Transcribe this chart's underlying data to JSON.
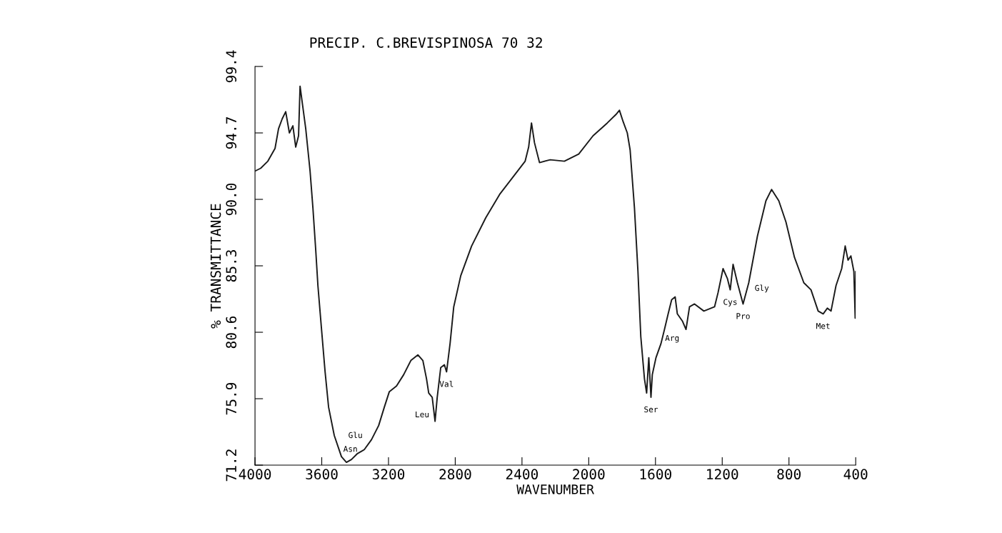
{
  "chart_data": {
    "type": "line",
    "title": "PRECIP. C.BREVISPINOSA 70 32",
    "xlabel": "WAVENUMBER",
    "ylabel": "% TRANSMITTANCE",
    "xlim": [
      4000,
      400
    ],
    "xticks": [
      4000,
      3600,
      3200,
      2800,
      2400,
      2000,
      1600,
      1200,
      800,
      400
    ],
    "ylim": [
      71.2,
      99.4
    ],
    "yticks": [
      71.2,
      75.9,
      80.6,
      85.3,
      {
        "value": 90,
        "label": "90.0"
      },
      94.7,
      99.4
    ],
    "grid": false,
    "legend": false,
    "marker": "none",
    "line_style": "solid",
    "x": [
      4000,
      3966,
      3923,
      3880,
      3859,
      3837,
      3816,
      3794,
      3773,
      3756,
      3739,
      3730,
      3713,
      3696,
      3683,
      3670,
      3653,
      3636,
      3623,
      3602,
      3580,
      3559,
      3525,
      3482,
      3452,
      3422,
      3388,
      3345,
      3302,
      3259,
      3225,
      3195,
      3152,
      3109,
      3066,
      3024,
      2994,
      2972,
      2959,
      2938,
      2921,
      2908,
      2887,
      2865,
      2852,
      2831,
      2809,
      2767,
      2702,
      2617,
      2531,
      2446,
      2381,
      2360,
      2343,
      2325,
      2295,
      2231,
      2146,
      2060,
      1974,
      1889,
      1837,
      1816,
      1794,
      1769,
      1752,
      1726,
      1705,
      1688,
      1666,
      1653,
      1640,
      1627,
      1619,
      1597,
      1567,
      1546,
      1524,
      1503,
      1482,
      1469,
      1439,
      1417,
      1396,
      1366,
      1310,
      1246,
      1225,
      1195,
      1169,
      1152,
      1135,
      1109,
      1075,
      1041,
      989,
      938,
      904,
      861,
      818,
      767,
      711,
      668,
      625,
      595,
      570,
      548,
      518,
      484,
      463,
      446,
      429,
      411,
      403,
      400
    ],
    "series": [
      {
        "color": "#1a1a1a",
        "values": [
          92.0,
          92.2,
          92.7,
          93.6,
          95.0,
          95.7,
          96.2,
          94.7,
          95.2,
          93.7,
          94.5,
          98.0,
          96.5,
          95.0,
          93.5,
          92.0,
          89.4,
          86.4,
          83.9,
          80.9,
          77.8,
          75.3,
          73.3,
          71.8,
          71.4,
          71.6,
          72.0,
          72.3,
          73.0,
          74.0,
          75.3,
          76.4,
          76.8,
          77.6,
          78.6,
          79.0,
          78.6,
          77.3,
          76.3,
          76.0,
          74.3,
          76.0,
          78.1,
          78.3,
          77.8,
          79.8,
          82.4,
          84.6,
          86.7,
          88.7,
          90.4,
          91.7,
          92.7,
          93.7,
          95.4,
          94.0,
          92.6,
          92.8,
          92.7,
          93.2,
          94.5,
          95.4,
          96.0,
          96.3,
          95.5,
          94.7,
          93.5,
          89.4,
          84.9,
          80.3,
          77.3,
          76.3,
          78.8,
          76.0,
          77.6,
          78.8,
          79.8,
          80.8,
          81.9,
          82.9,
          83.1,
          81.9,
          81.4,
          80.8,
          82.4,
          82.6,
          82.1,
          82.4,
          83.4,
          85.1,
          84.4,
          83.6,
          85.4,
          84.1,
          82.6,
          84.1,
          87.4,
          89.9,
          90.7,
          89.9,
          88.4,
          85.9,
          84.1,
          83.6,
          82.1,
          81.9,
          82.3,
          82.1,
          83.9,
          85.1,
          86.7,
          85.7,
          86.0,
          84.9,
          81.6,
          84.9
        ]
      }
    ],
    "annotations": [
      {
        "text": "Asn",
        "x": 3452,
        "y": 71.4
      },
      {
        "text": "Glu",
        "x": 3422,
        "y": 71.6
      },
      {
        "text": "Leu",
        "x": 2938,
        "y": 76.0
      },
      {
        "text": "Val",
        "x": 2852,
        "y": 77.8
      },
      {
        "text": "Ser",
        "x": 1627,
        "y": 76.0
      },
      {
        "text": "Arg",
        "x": 1439,
        "y": 81.4
      },
      {
        "text": "Cys",
        "x": 1152,
        "y": 83.6
      },
      {
        "text": "Pro",
        "x": 1075,
        "y": 82.6
      },
      {
        "text": "Gly",
        "x": 1041,
        "y": 84.1
      },
      {
        "text": "Met",
        "x": 595,
        "y": 81.9
      }
    ]
  }
}
